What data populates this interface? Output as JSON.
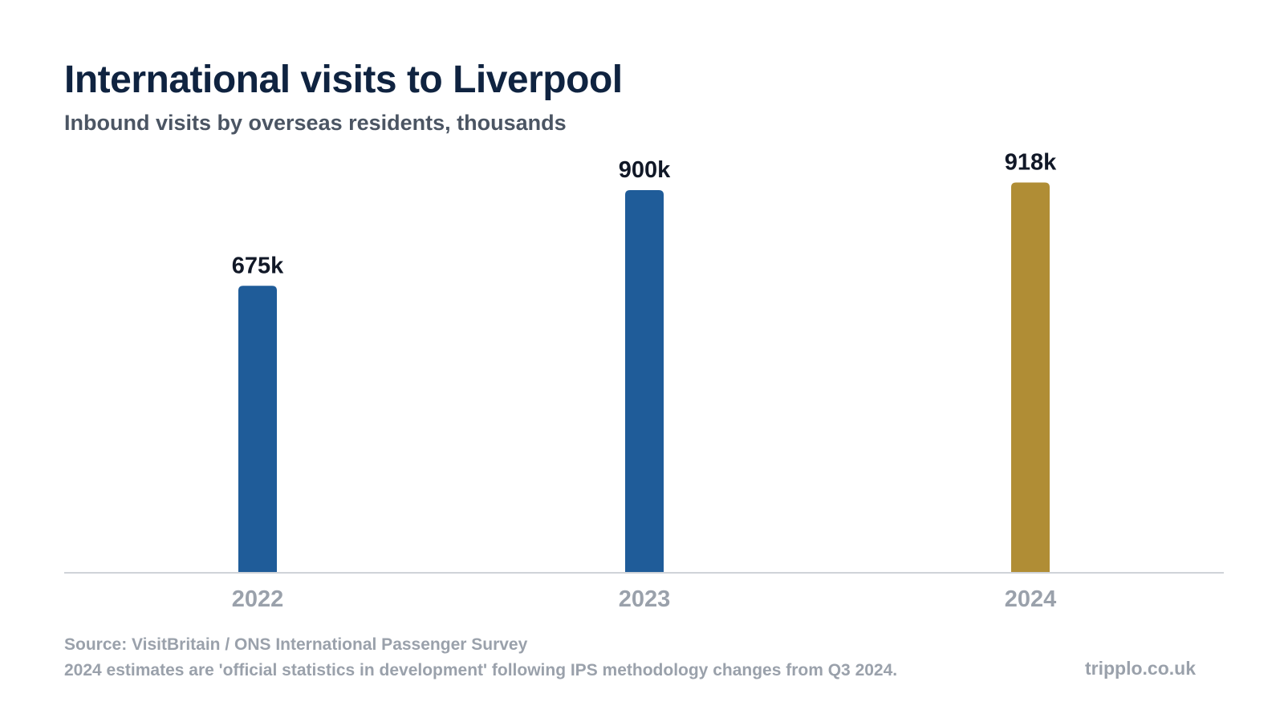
{
  "chart_data": {
    "type": "bar",
    "title": "International visits to Liverpool",
    "subtitle": "Inbound visits by overseas residents, thousands",
    "categories": [
      "2022",
      "2023",
      "2024"
    ],
    "values": [
      675,
      900,
      918
    ],
    "data_labels": [
      "675k",
      "900k",
      "918k"
    ],
    "bar_colors": [
      "#1f5c99",
      "#1f5c99",
      "#b08d35"
    ],
    "ylim": [
      0,
      1000
    ],
    "xlabel": "",
    "ylabel": "",
    "grid": false,
    "legend": "none"
  },
  "footer": {
    "source": "Source: VisitBritain / ONS International Passenger Survey",
    "note": "2024 estimates are 'official statistics in development' following IPS methodology changes from Q3 2024.",
    "brand": "tripplo.co.uk"
  }
}
